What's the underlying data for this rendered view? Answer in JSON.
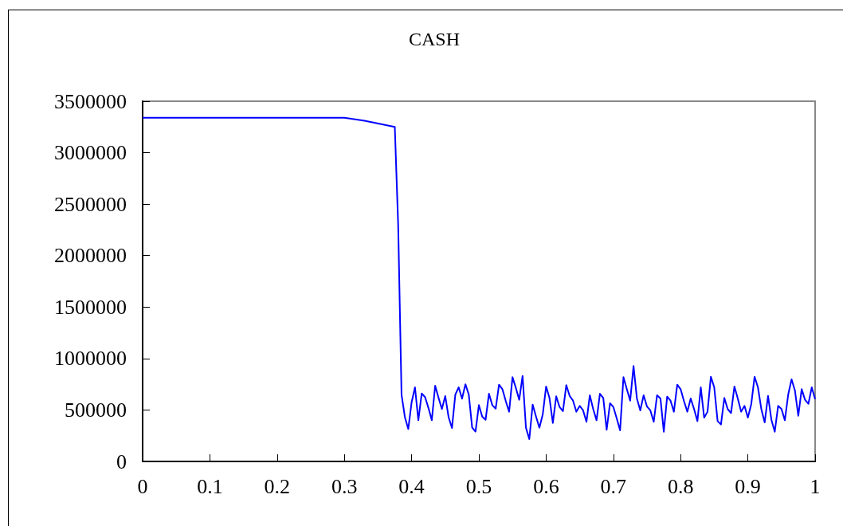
{
  "chart_data": {
    "type": "line",
    "title": "CASH",
    "xlim": [
      0,
      1
    ],
    "xticks": [
      0,
      0.1,
      0.2,
      0.3,
      0.4,
      0.5,
      0.6,
      0.7,
      0.8,
      0.9,
      1
    ],
    "ylim": [
      0,
      3500000
    ],
    "yticks": [
      0,
      500000,
      1000000,
      1500000,
      2000000,
      2500000,
      3000000,
      3500000
    ],
    "marker": "none",
    "line_style": "solid",
    "series": [
      {
        "color": "#0000ff",
        "x": [
          0,
          0.3,
          0.33,
          0.375,
          0.38,
          0.385,
          0.39,
          0.395,
          0.4,
          0.405,
          0.41,
          0.415,
          0.42,
          0.425,
          0.43,
          0.435,
          0.44,
          0.445,
          0.45,
          0.455,
          0.46,
          0.465,
          0.47,
          0.475,
          0.48,
          0.485,
          0.49,
          0.495,
          0.5,
          0.505,
          0.51,
          0.515,
          0.52,
          0.525,
          0.53,
          0.535,
          0.54,
          0.545,
          0.55,
          0.555,
          0.56,
          0.565,
          0.57,
          0.575,
          0.58,
          0.585,
          0.59,
          0.595,
          0.6,
          0.605,
          0.61,
          0.615,
          0.62,
          0.625,
          0.63,
          0.635,
          0.64,
          0.645,
          0.65,
          0.655,
          0.66,
          0.665,
          0.67,
          0.675,
          0.68,
          0.685,
          0.69,
          0.695,
          0.7,
          0.705,
          0.71,
          0.715,
          0.72,
          0.725,
          0.73,
          0.735,
          0.74,
          0.745,
          0.75,
          0.755,
          0.76,
          0.765,
          0.77,
          0.775,
          0.78,
          0.785,
          0.79,
          0.795,
          0.8,
          0.805,
          0.81,
          0.815,
          0.82,
          0.825,
          0.83,
          0.835,
          0.84,
          0.845,
          0.85,
          0.855,
          0.86,
          0.865,
          0.87,
          0.875,
          0.88,
          0.885,
          0.89,
          0.895,
          0.9,
          0.905,
          0.91,
          0.915,
          0.92,
          0.925,
          0.93,
          0.935,
          0.94,
          0.945,
          0.95,
          0.955,
          0.96,
          0.965,
          0.97,
          0.975,
          0.98,
          0.985,
          0.99,
          0.995,
          1
        ],
        "values": [
          3340000,
          3340000,
          3310000,
          3250000,
          2300000,
          650000,
          430000,
          315000,
          575000,
          720000,
          400000,
          660000,
          625000,
          520000,
          400000,
          735000,
          620000,
          510000,
          635000,
          430000,
          325000,
          650000,
          720000,
          610000,
          750000,
          650000,
          330000,
          290000,
          547000,
          436000,
          405000,
          658000,
          547000,
          513000,
          746000,
          702000,
          586000,
          483000,
          818000,
          715000,
          599000,
          831000,
          328000,
          217000,
          552000,
          436000,
          328000,
          457000,
          728000,
          617000,
          374000,
          633000,
          529000,
          488000,
          741000,
          637000,
          591000,
          483000,
          540000,
          496000,
          385000,
          643000,
          509000,
          400000,
          658000,
          617000,
          307000,
          565000,
          529000,
          418000,
          302000,
          818000,
          702000,
          591000,
          927000,
          612000,
          496000,
          643000,
          534000,
          496000,
          385000,
          643000,
          612000,
          289000,
          630000,
          591000,
          483000,
          746000,
          702000,
          586000,
          483000,
          612000,
          509000,
          392000,
          720000,
          426000,
          483000,
          823000,
          720000,
          392000,
          359000,
          617000,
          509000,
          470000,
          728000,
          612000,
          483000,
          540000,
          426000,
          555000,
          823000,
          720000,
          509000,
          379000,
          637000,
          405000,
          289000,
          540000,
          509000,
          400000,
          650000,
          797000,
          689000,
          444000,
          702000,
          599000,
          560000,
          720000,
          606000
        ]
      }
    ]
  }
}
